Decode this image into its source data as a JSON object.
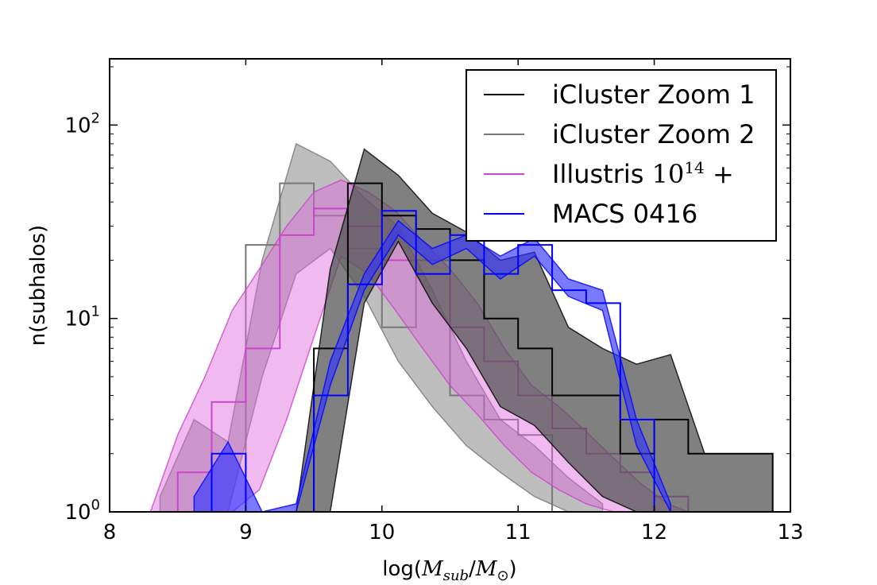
{
  "chart_data": {
    "type": "area",
    "title": "",
    "xlabel": "log(M_sub/M_⊙)",
    "ylabel": "n(subhalos)",
    "xlim": [
      8,
      13
    ],
    "ylim": [
      1,
      220
    ],
    "yscale": "log",
    "x_ticks": [
      "8",
      "9",
      "10",
      "11",
      "12",
      "13"
    ],
    "x_tick_values": [
      8,
      9,
      10,
      11,
      12,
      13
    ],
    "y_ticks": [
      "10⁰",
      "10¹",
      "10²"
    ],
    "y_tick_values": [
      1,
      10,
      100
    ],
    "grid": false,
    "legend_position": "top-right",
    "series": [
      {
        "name": "iCluster Zoom 2",
        "color": "#777777",
        "band_color": "#b3b3b3",
        "band_opacity": 0.85,
        "band_upper": [
          [
            8.37,
            1.2
          ],
          [
            8.62,
            3.0
          ],
          [
            8.87,
            2.3
          ],
          [
            9.12,
            20
          ],
          [
            9.37,
            80
          ],
          [
            9.62,
            65
          ],
          [
            9.87,
            42
          ],
          [
            10.12,
            30
          ],
          [
            10.37,
            14
          ],
          [
            10.62,
            6
          ],
          [
            10.87,
            3
          ],
          [
            11.12,
            2.2
          ],
          [
            11.37,
            1.5
          ],
          [
            11.62,
            1.1
          ]
        ],
        "band_lower": [
          [
            8.37,
            1.0
          ],
          [
            8.62,
            1.0
          ],
          [
            8.87,
            1.0
          ],
          [
            9.12,
            5
          ],
          [
            9.37,
            17
          ],
          [
            9.62,
            23
          ],
          [
            9.87,
            13
          ],
          [
            10.12,
            6
          ],
          [
            10.37,
            3.5
          ],
          [
            10.62,
            2.2
          ],
          [
            10.87,
            1.6
          ],
          [
            11.12,
            1.2
          ],
          [
            11.37,
            1.0
          ],
          [
            11.62,
            1.0
          ]
        ],
        "step_edges": [
          9.0,
          9.25,
          9.5,
          9.75,
          10.0,
          10.25,
          10.5,
          10.75,
          11.0,
          11.25
        ],
        "step_values": [
          24,
          50,
          34,
          23,
          9,
          20,
          4,
          3,
          2.5
        ]
      },
      {
        "name": "Illustris 10¹⁴+",
        "color": "#cc44cc",
        "band_color": "#dd66dd",
        "band_opacity": 0.45,
        "band_upper": [
          [
            8.3,
            1.0
          ],
          [
            8.5,
            2.5
          ],
          [
            8.7,
            5
          ],
          [
            8.9,
            11
          ],
          [
            9.1,
            18
          ],
          [
            9.3,
            30
          ],
          [
            9.5,
            45
          ],
          [
            9.7,
            52
          ],
          [
            9.9,
            45
          ],
          [
            10.1,
            36
          ],
          [
            10.3,
            25
          ],
          [
            10.5,
            18
          ],
          [
            10.7,
            12
          ],
          [
            10.9,
            7
          ],
          [
            11.1,
            4.5
          ],
          [
            11.3,
            3.5
          ],
          [
            11.5,
            2.6
          ],
          [
            11.7,
            1.9
          ],
          [
            11.9,
            1.4
          ],
          [
            12.1,
            1.1
          ],
          [
            12.25,
            1.0
          ]
        ],
        "band_lower": [
          [
            8.3,
            1.0
          ],
          [
            8.5,
            1.0
          ],
          [
            8.7,
            1.0
          ],
          [
            8.9,
            1.0
          ],
          [
            9.1,
            1.3
          ],
          [
            9.3,
            3.0
          ],
          [
            9.5,
            8
          ],
          [
            9.7,
            21
          ],
          [
            9.9,
            17
          ],
          [
            10.1,
            11
          ],
          [
            10.3,
            7
          ],
          [
            10.5,
            4.5
          ],
          [
            10.7,
            3.2
          ],
          [
            10.9,
            2.2
          ],
          [
            11.1,
            1.6
          ],
          [
            11.3,
            1.3
          ],
          [
            11.5,
            1.1
          ],
          [
            11.7,
            1.0
          ],
          [
            11.9,
            1.0
          ],
          [
            12.1,
            1.0
          ],
          [
            12.25,
            1.0
          ]
        ],
        "step_edges": [
          8.5,
          8.75,
          9.0,
          9.25,
          9.5,
          9.75,
          10.0,
          10.25,
          10.5,
          10.75,
          11.0,
          11.25,
          11.5,
          11.75,
          12.0,
          12.25
        ],
        "step_values": [
          1.6,
          3.7,
          7,
          27,
          37,
          30,
          20,
          17,
          9,
          6,
          4,
          2.7,
          2.0,
          1.6,
          1.2
        ]
      },
      {
        "name": "iCluster Zoom 1",
        "color": "#000000",
        "band_color": "#555555",
        "band_opacity": 0.75,
        "band_upper": [
          [
            9.37,
            1.0
          ],
          [
            9.62,
            18
          ],
          [
            9.87,
            75
          ],
          [
            10.12,
            55
          ],
          [
            10.37,
            35
          ],
          [
            10.62,
            28
          ],
          [
            10.87,
            20
          ],
          [
            11.12,
            22
          ],
          [
            11.37,
            9
          ],
          [
            11.62,
            7
          ],
          [
            11.87,
            5.8
          ],
          [
            12.12,
            6.5
          ],
          [
            12.37,
            2.0
          ],
          [
            12.62,
            2.0
          ],
          [
            12.87,
            2.0
          ]
        ],
        "band_lower": [
          [
            9.37,
            1.0
          ],
          [
            9.62,
            1.0
          ],
          [
            9.87,
            12
          ],
          [
            10.12,
            25
          ],
          [
            10.37,
            12
          ],
          [
            10.62,
            7
          ],
          [
            10.87,
            3.5
          ],
          [
            11.12,
            2.8
          ],
          [
            11.37,
            1.8
          ],
          [
            11.62,
            1.2
          ],
          [
            11.87,
            1.0
          ],
          [
            12.12,
            1.0
          ],
          [
            12.37,
            1.0
          ],
          [
            12.62,
            1.0
          ],
          [
            12.87,
            1.0
          ]
        ],
        "step_edges": [
          9.5,
          9.75,
          10.0,
          10.25,
          10.5,
          10.75,
          11.0,
          11.25,
          11.5,
          11.75,
          12.0,
          12.25,
          12.5,
          12.87
        ],
        "step_values": [
          7,
          50,
          34,
          29,
          20,
          10,
          7,
          4,
          4,
          2,
          3,
          2,
          2
        ]
      },
      {
        "name": "MACS 0416",
        "color": "#0000ff",
        "band_color": "#3333ff",
        "band_opacity": 0.65,
        "band_upper": [
          [
            8.62,
            1.2
          ],
          [
            8.87,
            2.3
          ],
          [
            9.12,
            1.0
          ],
          [
            9.37,
            1.1
          ],
          [
            9.62,
            6
          ],
          [
            9.87,
            17
          ],
          [
            10.12,
            32
          ],
          [
            10.37,
            23
          ],
          [
            10.62,
            27
          ],
          [
            10.87,
            21
          ],
          [
            11.12,
            26
          ],
          [
            11.37,
            16
          ],
          [
            11.62,
            14
          ],
          [
            11.87,
            3.0
          ],
          [
            12.12,
            1.1
          ]
        ],
        "band_lower": [
          [
            8.62,
            1.0
          ],
          [
            8.87,
            1.0
          ],
          [
            9.12,
            1.0
          ],
          [
            9.37,
            1.0
          ],
          [
            9.62,
            4.5
          ],
          [
            9.87,
            14
          ],
          [
            10.12,
            27
          ],
          [
            10.37,
            19
          ],
          [
            10.62,
            23
          ],
          [
            10.87,
            16
          ],
          [
            11.12,
            21
          ],
          [
            11.37,
            13
          ],
          [
            11.62,
            11
          ],
          [
            11.87,
            2.2
          ],
          [
            12.12,
            1.0
          ]
        ],
        "step_edges": [
          8.75,
          9.0,
          9.25,
          9.5,
          9.75,
          10.0,
          10.25,
          10.5,
          10.75,
          11.0,
          11.25,
          11.5,
          11.75,
          12.0
        ],
        "step_values": [
          2,
          1.0,
          1.0,
          4,
          15,
          36,
          17,
          27,
          17,
          24,
          14,
          12,
          3
        ]
      }
    ],
    "legend_order": [
      "iCluster Zoom 1",
      "iCluster Zoom 2",
      "Illustris 10¹⁴+",
      "MACS 0416"
    ]
  }
}
